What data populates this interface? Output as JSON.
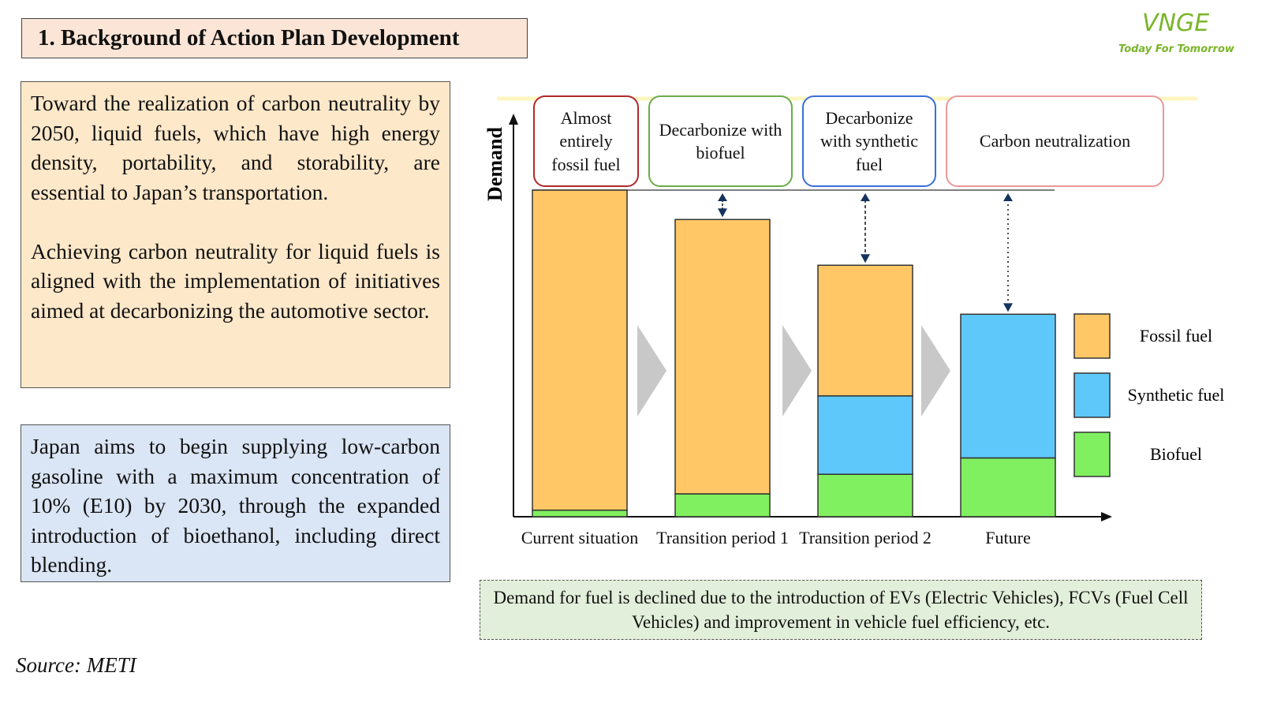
{
  "header": {
    "title": "1. Background of Action Plan Development"
  },
  "logo": {
    "name": "VNGE",
    "tagline": "Today For Tomorrow"
  },
  "text_boxes": [
    {
      "paragraphs": [
        "Toward the realization of carbon neutrality by 2050, liquid fuels, which have high energy density, portability, and storability, are essential to Japan’s transportation.",
        "Achieving carbon neutrality for liquid fuels is aligned with the implementation of initiatives aimed at decarbonizing the automotive sector."
      ]
    },
    {
      "paragraphs": [
        "Japan aims to begin supplying low-carbon gasoline with a maximum concentration of 10% (E10) by 2030, through the expanded introduction of bioethanol, including direct blending."
      ]
    }
  ],
  "chart_data": {
    "type": "bar",
    "stacked": true,
    "y_label": "Demand",
    "stage_labels": [
      "Almost entirely fossil fuel",
      "Decarbonize with biofuel",
      "Decarbonize with synthetic fuel",
      "Carbon neutralization"
    ],
    "categories": [
      "Current situation",
      "Transition period 1",
      "Transition period 2",
      "Future"
    ],
    "series": [
      {
        "name": "Biofuel",
        "color": "#80f060",
        "values": [
          2,
          7,
          13,
          18
        ]
      },
      {
        "name": "Synthetic fuel",
        "color": "#5ec8fa",
        "values": [
          0,
          0,
          24,
          44
        ]
      },
      {
        "name": "Fossil fuel",
        "color": "#ffc766",
        "values": [
          98,
          84,
          40,
          0
        ]
      }
    ],
    "ylim": [
      0,
      100
    ]
  },
  "note": "Demand for fuel is declined due to the introduction of EVs (Electric Vehicles), FCVs (Fuel Cell Vehicles) and improvement in vehicle fuel efficiency, etc.",
  "source": "Source: METI"
}
